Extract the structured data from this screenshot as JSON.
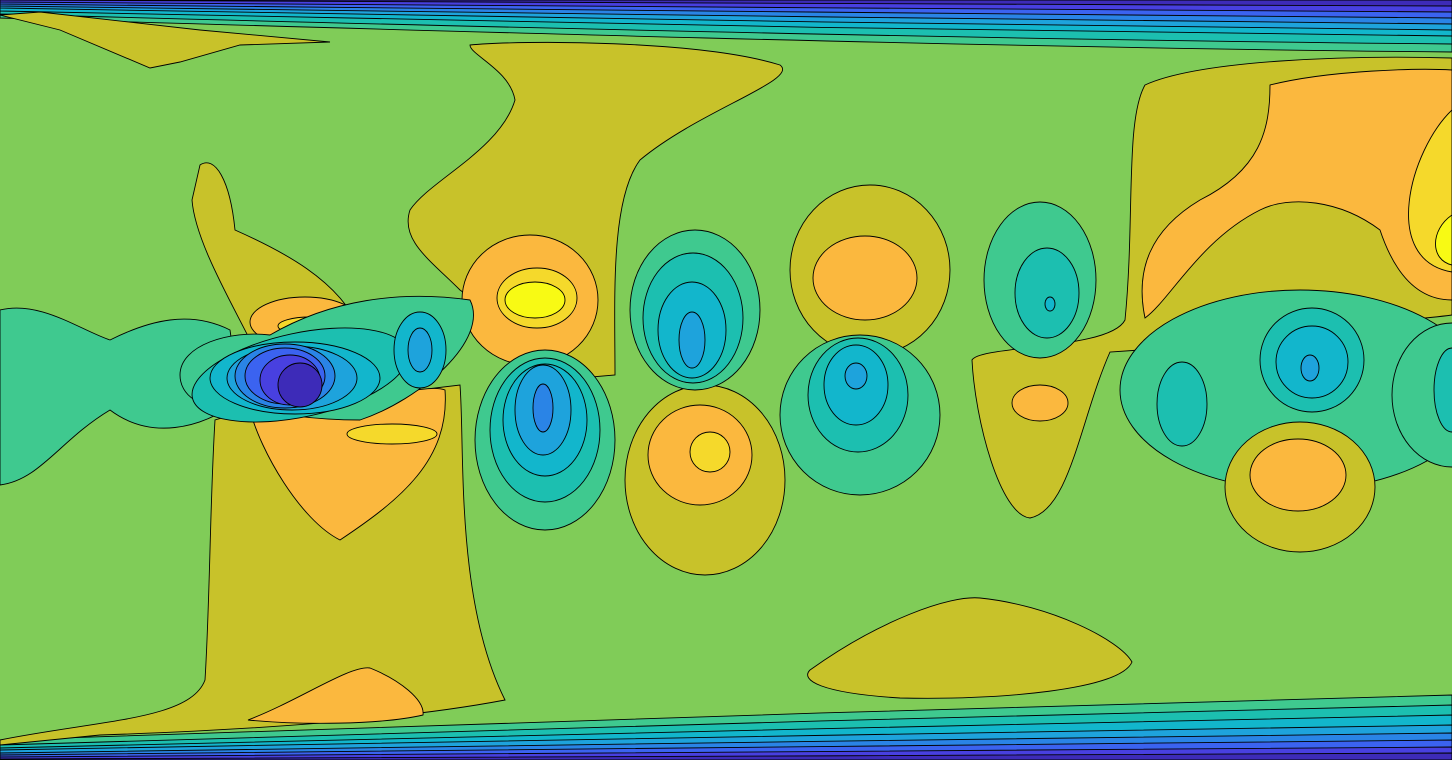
{
  "chart_data": {
    "type": "contour",
    "colors": [
      "#352a87",
      "#3d2bb8",
      "#4840e0",
      "#3b63f0",
      "#2a84e6",
      "#1ea3dc",
      "#12b6cc",
      "#1cbfb0",
      "#3fc98f",
      "#80cc58",
      "#c8c22a",
      "#fbb83e",
      "#f5d92b",
      "#f8fa14"
    ]
  }
}
